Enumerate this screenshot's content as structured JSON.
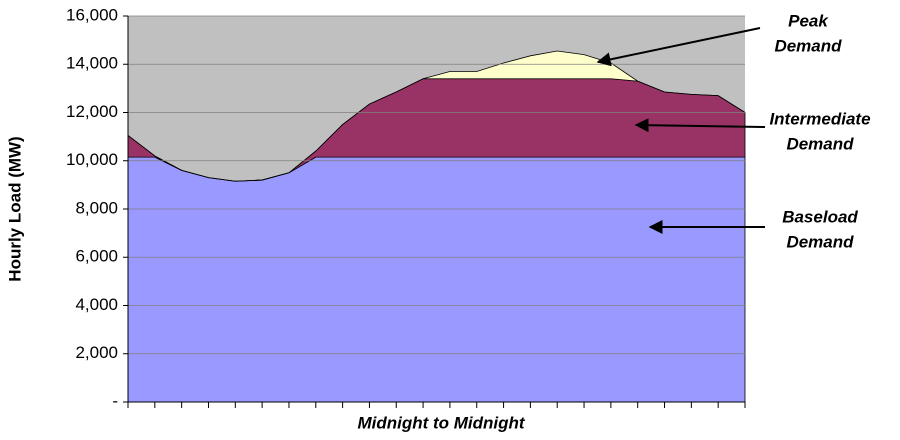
{
  "chart_data": {
    "type": "stacked_area",
    "x_label": "Midnight to Midnight",
    "y_label": "Hourly Load (MW)",
    "plot_background": "#c0c0c0",
    "grid": true,
    "categories": [
      null,
      null,
      null,
      null,
      null,
      null,
      null,
      null,
      null,
      null,
      null,
      null,
      null,
      null,
      null,
      null,
      null,
      null,
      null,
      null,
      null,
      null,
      null,
      null
    ],
    "series": [
      {
        "color": "#9999ff",
        "values": [
          10150,
          10150,
          9600,
          9300,
          9150,
          9200,
          9500,
          10150,
          10150,
          10150,
          10150,
          10150,
          10150,
          10150,
          10150,
          10150,
          10150,
          10150,
          10150,
          10150,
          10150,
          10150,
          10150,
          10150
        ]
      },
      {
        "color": "#993366",
        "values": [
          900,
          50,
          0,
          0,
          0,
          0,
          0,
          250,
          1350,
          2200,
          2700,
          3250,
          3250,
          3250,
          3250,
          3250,
          3250,
          3250,
          3250,
          3150,
          2700,
          2600,
          2550,
          1850
        ]
      },
      {
        "color": "#ffffcc",
        "values": [
          0,
          0,
          0,
          0,
          0,
          0,
          0,
          0,
          0,
          0,
          0,
          0,
          300,
          300,
          650,
          950,
          1150,
          1000,
          650,
          0,
          0,
          0,
          0,
          0
        ]
      }
    ],
    "annotations": [
      {
        "lines": [
          "Peak",
          "Demand"
        ]
      },
      {
        "lines": [
          "Intermediate",
          "Demand"
        ]
      },
      {
        "lines": [
          "Baseload",
          "Demand"
        ]
      }
    ],
    "ylim": [
      0,
      16000
    ],
    "yticks": [
      {
        "value": 0,
        "label": "-"
      },
      {
        "value": 2000,
        "label": "2,000"
      },
      {
        "value": 4000,
        "label": "4,000"
      },
      {
        "value": 6000,
        "label": "6,000"
      },
      {
        "value": 8000,
        "label": "8,000"
      },
      {
        "value": 10000,
        "label": "10,000"
      },
      {
        "value": 12000,
        "label": "12,000"
      },
      {
        "value": 14000,
        "label": "14,000"
      },
      {
        "value": 16000,
        "label": "16,000"
      }
    ]
  }
}
